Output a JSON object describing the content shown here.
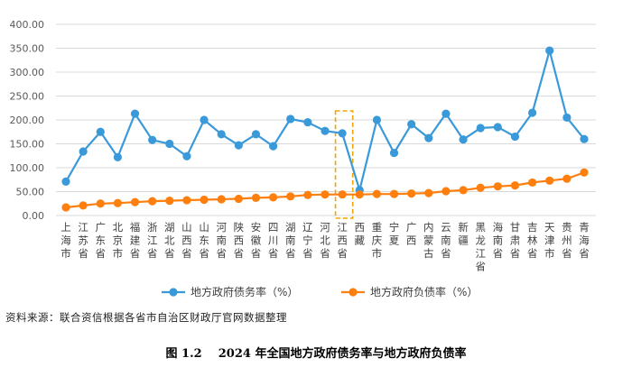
{
  "chart_data": {
    "type": "line",
    "categories": [
      "上海市",
      "江苏省",
      "广东省",
      "北京市",
      "福建省",
      "浙江省",
      "湖北省",
      "山西省",
      "山东省",
      "河南省",
      "陕西省",
      "安徽省",
      "四川省",
      "湖南省",
      "辽宁省",
      "河北省",
      "江西省",
      "西藏",
      "重庆市",
      "宁夏",
      "广西",
      "内蒙古",
      "云南省",
      "新疆",
      "黑龙江省",
      "海南省",
      "甘肃省",
      "吉林省",
      "天津市",
      "贵州省",
      "青海省"
    ],
    "yticks": [
      "400.00",
      "350.00",
      "300.00",
      "250.00",
      "200.00",
      "150.00",
      "100.00",
      "50.00",
      "0.00"
    ],
    "ylim": [
      0,
      400
    ],
    "grid": true,
    "legend_position": "bottom",
    "highlight": {
      "from": "江西省",
      "to": "西藏"
    },
    "series": [
      {
        "name": "地方政府债务率（%）",
        "color": "#3a9ad9",
        "values": [
          71,
          134,
          175,
          122,
          213,
          158,
          150,
          124,
          200,
          170,
          147,
          170,
          145,
          202,
          195,
          177,
          172,
          53,
          200,
          131,
          191,
          162,
          213,
          159,
          183,
          185,
          165,
          215,
          345,
          205,
          160
        ]
      },
      {
        "name": "地方政府负债率（%）",
        "color": "#ff7f0e",
        "values": [
          17,
          21,
          25,
          26,
          28,
          30,
          31,
          32,
          33,
          34,
          35,
          37,
          38,
          40,
          43,
          44,
          44,
          44,
          45,
          45,
          46,
          47,
          51,
          53,
          58,
          61,
          63,
          69,
          73,
          77,
          90
        ]
      }
    ]
  },
  "footer": {
    "source": "资料来源：联合资信根据各省市自治区财政厅官网数据整理",
    "figure_no": "图 1.2",
    "title": "2024 年全国地方政府债务率与地方政府负债率"
  }
}
